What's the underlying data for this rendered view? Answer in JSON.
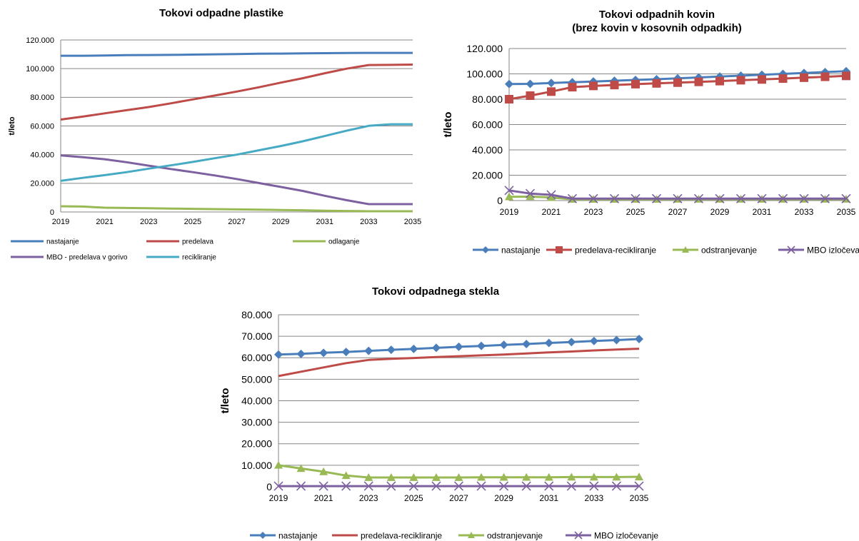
{
  "chart_data": [
    {
      "type": "line",
      "title": "Tokovi odpadne plastike",
      "ylabel": "t/leto",
      "xlabel": "",
      "ylim": [
        0,
        120000
      ],
      "yticks": [
        "0",
        "20.000",
        "40.000",
        "60.000",
        "80.000",
        "100.000",
        "120.000"
      ],
      "xticks": [
        "2019",
        "2021",
        "2023",
        "2025",
        "2027",
        "2029",
        "2031",
        "2033",
        "2035"
      ],
      "x": [
        2019,
        2020,
        2021,
        2022,
        2023,
        2024,
        2025,
        2026,
        2027,
        2028,
        2029,
        2030,
        2031,
        2032,
        2033,
        2034,
        2035
      ],
      "grid": true,
      "legend_position": "bottom",
      "series": [
        {
          "name": "nastajanje",
          "color": "#4a7ebb",
          "values": [
            109000,
            109000,
            109200,
            109400,
            109500,
            109600,
            109800,
            110000,
            110200,
            110400,
            110500,
            110700,
            110800,
            110900,
            111000,
            111000,
            111000
          ]
        },
        {
          "name": "predelava",
          "color": "#be4b48",
          "values": [
            64500,
            66500,
            68800,
            71000,
            73200,
            75800,
            78500,
            81200,
            84000,
            87000,
            90200,
            93300,
            96800,
            100000,
            102500,
            102600,
            102800
          ]
        },
        {
          "name": "odlaganje",
          "color": "#98b954",
          "values": [
            4000,
            3800,
            3000,
            2800,
            2600,
            2400,
            2200,
            2000,
            1800,
            1600,
            1400,
            1200,
            900,
            700,
            500,
            500,
            500
          ]
        },
        {
          "name": "MBO - predelava v gorivo",
          "color": "#7d60a0",
          "values": [
            39500,
            38200,
            36800,
            34700,
            32300,
            30000,
            27800,
            25500,
            23000,
            20200,
            17500,
            14700,
            11300,
            8200,
            5500,
            5500,
            5500
          ]
        },
        {
          "name": "recikliranje",
          "color": "#46aac4",
          "values": [
            21700,
            23800,
            25700,
            27800,
            30200,
            32500,
            34900,
            37500,
            40000,
            43000,
            46000,
            49300,
            53000,
            56700,
            60100,
            61200,
            61200
          ]
        }
      ]
    },
    {
      "type": "line",
      "title": "Tokovi odpadnih kovin\n(brez kovin v kosovnih odpadkih)",
      "ylabel": "t/leto",
      "xlabel": "",
      "ylim": [
        0,
        120000
      ],
      "yticks": [
        "0",
        "20.000",
        "40.000",
        "60.000",
        "80.000",
        "100.000",
        "120.000"
      ],
      "xticks": [
        "2019",
        "2021",
        "2023",
        "2025",
        "2027",
        "2029",
        "2031",
        "2033",
        "2035"
      ],
      "x": [
        2019,
        2020,
        2021,
        2022,
        2023,
        2024,
        2025,
        2026,
        2027,
        2028,
        2029,
        2030,
        2031,
        2032,
        2033,
        2034,
        2035
      ],
      "grid": true,
      "legend_position": "bottom",
      "series": [
        {
          "name": "nastajanje",
          "color": "#4a7ebb",
          "marker": "diamond",
          "values": [
            92000,
            92100,
            92800,
            93400,
            94000,
            94600,
            95200,
            95800,
            96500,
            97200,
            97900,
            98600,
            99300,
            100000,
            100700,
            101400,
            102100
          ]
        },
        {
          "name": "predelava-recikliranje",
          "color": "#be4b48",
          "marker": "square",
          "values": [
            80000,
            82800,
            86000,
            89500,
            90500,
            91200,
            91900,
            92500,
            93100,
            93700,
            94300,
            95000,
            95600,
            96300,
            97000,
            97700,
            98400
          ]
        },
        {
          "name": "odstranjevanje",
          "color": "#98b954",
          "marker": "triangle",
          "values": [
            3000,
            3100,
            2500,
            1000,
            1000,
            1000,
            1000,
            1000,
            1100,
            1100,
            1100,
            1100,
            1100,
            1100,
            1100,
            1100,
            1100
          ]
        },
        {
          "name": "MBO izločevanje",
          "color": "#7d60a0",
          "marker": "x",
          "values": [
            8000,
            5500,
            4500,
            1500,
            1500,
            1500,
            1500,
            1500,
            1500,
            1500,
            1500,
            1500,
            1500,
            1500,
            1500,
            1500,
            1500
          ]
        }
      ]
    },
    {
      "type": "line",
      "title": "Tokovi odpadnega stekla",
      "ylabel": "t/leto",
      "xlabel": "",
      "ylim": [
        0,
        80000
      ],
      "yticks": [
        "0",
        "10.000",
        "20.000",
        "30.000",
        "40.000",
        "50.000",
        "60.000",
        "70.000",
        "80.000"
      ],
      "xticks": [
        "2019",
        "2021",
        "2023",
        "2025",
        "2027",
        "2029",
        "2031",
        "2033",
        "2035"
      ],
      "x": [
        2019,
        2020,
        2021,
        2022,
        2023,
        2024,
        2025,
        2026,
        2027,
        2028,
        2029,
        2030,
        2031,
        2032,
        2033,
        2034,
        2035
      ],
      "grid": true,
      "legend_position": "bottom",
      "series": [
        {
          "name": "nastajanje",
          "color": "#4a7ebb",
          "marker": "diamond",
          "values": [
            61500,
            61800,
            62300,
            62700,
            63200,
            63700,
            64100,
            64600,
            65100,
            65500,
            66000,
            66400,
            66900,
            67300,
            67800,
            68200,
            68700
          ]
        },
        {
          "name": "predelava-recikliranje",
          "color": "#be4b48",
          "values": [
            51500,
            53500,
            55500,
            57500,
            59000,
            59500,
            59900,
            60300,
            60700,
            61100,
            61500,
            62000,
            62500,
            62900,
            63400,
            63800,
            64200
          ]
        },
        {
          "name": "odstranjevanje",
          "color": "#98b954",
          "marker": "triangle",
          "values": [
            10000,
            8500,
            7000,
            5200,
            4300,
            4300,
            4300,
            4300,
            4300,
            4400,
            4400,
            4400,
            4400,
            4500,
            4500,
            4500,
            4600
          ]
        },
        {
          "name": "MBO izločevanje",
          "color": "#7d60a0",
          "marker": "x",
          "values": [
            300,
            300,
            300,
            300,
            300,
            300,
            300,
            300,
            300,
            300,
            300,
            300,
            300,
            300,
            300,
            300,
            300
          ]
        }
      ]
    }
  ]
}
